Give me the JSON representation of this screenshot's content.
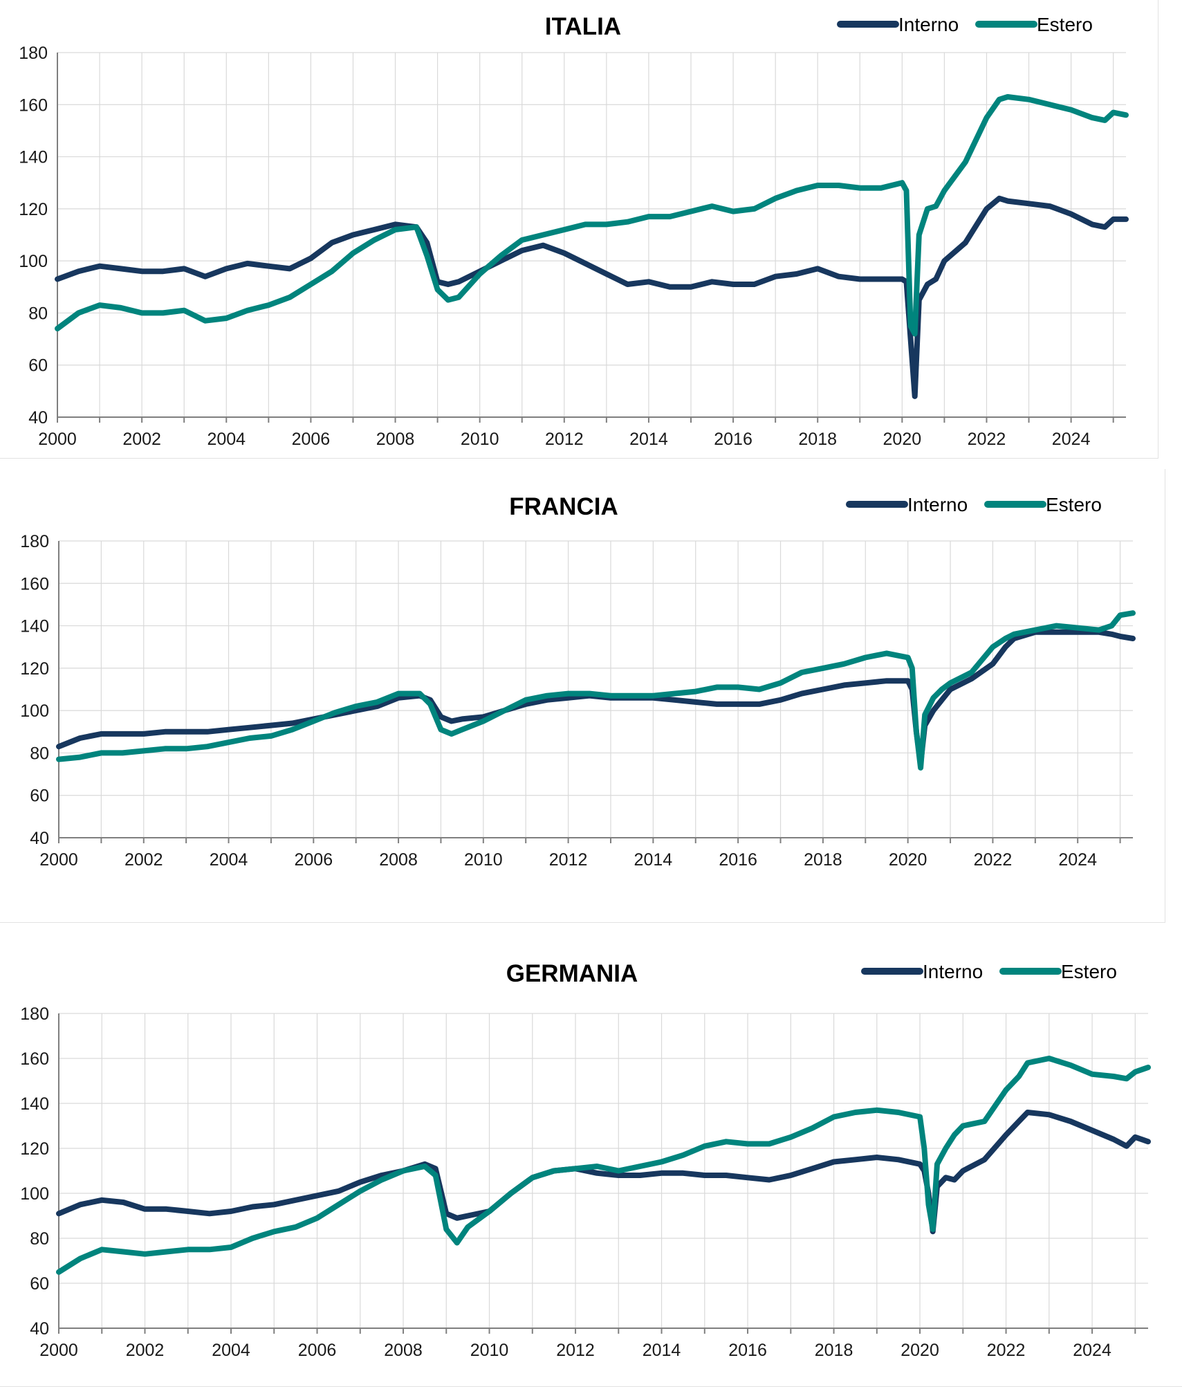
{
  "colors": {
    "interno": "#17375e",
    "estero": "#00847d",
    "grid": "#d9d9d9",
    "axis": "#7f7f7f"
  },
  "chart_data": [
    {
      "type": "line",
      "title": "ITALIA",
      "xlabel": "",
      "ylabel": "",
      "ylim": [
        40,
        180
      ],
      "xlim": [
        2000,
        2025.3
      ],
      "grid": true,
      "legend_position": "top-right",
      "x_ticks": [
        "2000",
        "2002",
        "2004",
        "2006",
        "2008",
        "2010",
        "2012",
        "2014",
        "2016",
        "2018",
        "2020",
        "2022",
        "2024"
      ],
      "y_ticks": [
        "180",
        "160",
        "140",
        "120",
        "100",
        "80",
        "60",
        "40"
      ],
      "series": [
        {
          "name": "Interno",
          "x": [
            2000,
            2000.5,
            2001,
            2001.5,
            2002,
            2002.5,
            2003,
            2003.5,
            2004,
            2004.5,
            2005,
            2005.5,
            2006,
            2006.5,
            2007,
            2007.5,
            2008,
            2008.5,
            2008.75,
            2009,
            2009.25,
            2009.5,
            2010,
            2010.5,
            2011,
            2011.5,
            2012,
            2012.5,
            2013,
            2013.5,
            2014,
            2014.5,
            2015,
            2015.5,
            2016,
            2016.5,
            2017,
            2017.5,
            2018,
            2018.5,
            2019,
            2019.5,
            2020,
            2020.1,
            2020.2,
            2020.3,
            2020.4,
            2020.6,
            2020.8,
            2021,
            2021.5,
            2022,
            2022.3,
            2022.5,
            2023,
            2023.5,
            2024,
            2024.5,
            2024.8,
            2025,
            2025.3
          ],
          "y": [
            93,
            96,
            98,
            97,
            96,
            96,
            97,
            94,
            97,
            99,
            98,
            97,
            101,
            107,
            110,
            112,
            114,
            113,
            107,
            92,
            91,
            92,
            96,
            100,
            104,
            106,
            103,
            99,
            95,
            91,
            92,
            90,
            90,
            92,
            91,
            91,
            94,
            95,
            97,
            94,
            93,
            93,
            93,
            92,
            70,
            48,
            85,
            91,
            93,
            100,
            107,
            120,
            124,
            123,
            122,
            121,
            118,
            114,
            113,
            116,
            116
          ]
        },
        {
          "name": "Estero",
          "x": [
            2000,
            2000.5,
            2001,
            2001.5,
            2002,
            2002.5,
            2003,
            2003.5,
            2004,
            2004.5,
            2005,
            2005.5,
            2006,
            2006.5,
            2007,
            2007.5,
            2008,
            2008.5,
            2008.75,
            2009,
            2009.25,
            2009.5,
            2010,
            2010.5,
            2011,
            2011.5,
            2012,
            2012.5,
            2013,
            2013.5,
            2014,
            2014.5,
            2015,
            2015.5,
            2016,
            2016.5,
            2017,
            2017.5,
            2018,
            2018.5,
            2019,
            2019.5,
            2020,
            2020.1,
            2020.2,
            2020.3,
            2020.4,
            2020.6,
            2020.8,
            2021,
            2021.5,
            2022,
            2022.3,
            2022.5,
            2023,
            2023.5,
            2024,
            2024.5,
            2024.8,
            2025,
            2025.3
          ],
          "y": [
            74,
            80,
            83,
            82,
            80,
            80,
            81,
            77,
            78,
            81,
            83,
            86,
            91,
            96,
            103,
            108,
            112,
            113,
            102,
            89,
            85,
            86,
            95,
            102,
            108,
            110,
            112,
            114,
            114,
            115,
            117,
            117,
            119,
            121,
            119,
            120,
            124,
            127,
            129,
            129,
            128,
            128,
            130,
            127,
            75,
            72,
            110,
            120,
            121,
            127,
            138,
            155,
            162,
            163,
            162,
            160,
            158,
            155,
            154,
            157,
            156
          ]
        }
      ]
    },
    {
      "type": "line",
      "title": "FRANCIA",
      "xlabel": "",
      "ylabel": "",
      "ylim": [
        40,
        180
      ],
      "xlim": [
        2000,
        2025.3
      ],
      "grid": true,
      "legend_position": "top-right",
      "x_ticks": [
        "2000",
        "2002",
        "2004",
        "2006",
        "2008",
        "2010",
        "2012",
        "2014",
        "2016",
        "2018",
        "2020",
        "2022",
        "2024"
      ],
      "y_ticks": [
        "180",
        "160",
        "140",
        "120",
        "100",
        "80",
        "60",
        "40"
      ],
      "series": [
        {
          "name": "Interno",
          "x": [
            2000,
            2000.5,
            2001,
            2001.5,
            2002,
            2002.5,
            2003,
            2003.5,
            2004,
            2004.5,
            2005,
            2005.5,
            2006,
            2006.5,
            2007,
            2007.5,
            2008,
            2008.5,
            2008.75,
            2009,
            2009.25,
            2009.5,
            2010,
            2010.5,
            2011,
            2011.5,
            2012,
            2012.5,
            2013,
            2013.5,
            2014,
            2014.5,
            2015,
            2015.5,
            2016,
            2016.5,
            2017,
            2017.5,
            2018,
            2018.5,
            2019,
            2019.5,
            2020,
            2020.1,
            2020.2,
            2020.3,
            2020.4,
            2020.6,
            2020.8,
            2021,
            2021.5,
            2022,
            2022.3,
            2022.5,
            2023,
            2023.5,
            2024,
            2024.5,
            2024.8,
            2025,
            2025.3
          ],
          "y": [
            83,
            87,
            89,
            89,
            89,
            90,
            90,
            90,
            91,
            92,
            93,
            94,
            96,
            98,
            100,
            102,
            106,
            107,
            105,
            97,
            95,
            96,
            97,
            100,
            103,
            105,
            106,
            107,
            106,
            106,
            106,
            105,
            104,
            103,
            103,
            103,
            105,
            108,
            110,
            112,
            113,
            114,
            114,
            110,
            90,
            75,
            93,
            100,
            105,
            110,
            115,
            122,
            130,
            134,
            137,
            137,
            137,
            137,
            136,
            135,
            134
          ]
        },
        {
          "name": "Estero",
          "x": [
            2000,
            2000.5,
            2001,
            2001.5,
            2002,
            2002.5,
            2003,
            2003.5,
            2004,
            2004.5,
            2005,
            2005.5,
            2006,
            2006.5,
            2007,
            2007.5,
            2008,
            2008.5,
            2008.75,
            2009,
            2009.25,
            2009.5,
            2010,
            2010.5,
            2011,
            2011.5,
            2012,
            2012.5,
            2013,
            2013.5,
            2014,
            2014.5,
            2015,
            2015.5,
            2016,
            2016.5,
            2017,
            2017.5,
            2018,
            2018.5,
            2019,
            2019.5,
            2020,
            2020.1,
            2020.2,
            2020.3,
            2020.4,
            2020.6,
            2020.8,
            2021,
            2021.5,
            2022,
            2022.3,
            2022.5,
            2023,
            2023.5,
            2024,
            2024.5,
            2024.8,
            2025,
            2025.3
          ],
          "y": [
            77,
            78,
            80,
            80,
            81,
            82,
            82,
            83,
            85,
            87,
            88,
            91,
            95,
            99,
            102,
            104,
            108,
            108,
            103,
            91,
            89,
            91,
            95,
            100,
            105,
            107,
            108,
            108,
            107,
            107,
            107,
            108,
            109,
            111,
            111,
            110,
            113,
            118,
            120,
            122,
            125,
            127,
            125,
            120,
            90,
            73,
            98,
            106,
            110,
            113,
            118,
            130,
            134,
            136,
            138,
            140,
            139,
            138,
            140,
            145,
            146
          ]
        }
      ]
    },
    {
      "type": "line",
      "title": "GERMANIA",
      "xlabel": "",
      "ylabel": "",
      "ylim": [
        40,
        180
      ],
      "xlim": [
        2000,
        2025.3
      ],
      "grid": true,
      "legend_position": "top-right",
      "x_ticks": [
        "2000",
        "2002",
        "2004",
        "2006",
        "2008",
        "2010",
        "2012",
        "2014",
        "2016",
        "2018",
        "2020",
        "2022",
        "2024"
      ],
      "y_ticks": [
        "180",
        "160",
        "140",
        "120",
        "100",
        "80",
        "60",
        "40"
      ],
      "series": [
        {
          "name": "Interno",
          "x": [
            2000,
            2000.5,
            2001,
            2001.5,
            2002,
            2002.5,
            2003,
            2003.5,
            2004,
            2004.5,
            2005,
            2005.5,
            2006,
            2006.5,
            2007,
            2007.5,
            2008,
            2008.5,
            2008.75,
            2009,
            2009.25,
            2009.5,
            2010,
            2010.5,
            2011,
            2011.5,
            2012,
            2012.5,
            2013,
            2013.5,
            2014,
            2014.5,
            2015,
            2015.5,
            2016,
            2016.5,
            2017,
            2017.5,
            2018,
            2018.5,
            2019,
            2019.5,
            2020,
            2020.1,
            2020.2,
            2020.3,
            2020.4,
            2020.6,
            2020.8,
            2021,
            2021.5,
            2022,
            2022.3,
            2022.5,
            2023,
            2023.5,
            2024,
            2024.5,
            2024.8,
            2025,
            2025.3
          ],
          "y": [
            91,
            95,
            97,
            96,
            93,
            93,
            92,
            91,
            92,
            94,
            95,
            97,
            99,
            101,
            105,
            108,
            110,
            113,
            111,
            91,
            89,
            90,
            92,
            100,
            107,
            110,
            111,
            109,
            108,
            108,
            109,
            109,
            108,
            108,
            107,
            106,
            108,
            111,
            114,
            115,
            116,
            115,
            113,
            110,
            100,
            83,
            103,
            107,
            106,
            110,
            115,
            126,
            132,
            136,
            135,
            132,
            128,
            124,
            121,
            125,
            123
          ]
        },
        {
          "name": "Estero",
          "x": [
            2000,
            2000.5,
            2001,
            2001.5,
            2002,
            2002.5,
            2003,
            2003.5,
            2004,
            2004.5,
            2005,
            2005.5,
            2006,
            2006.5,
            2007,
            2007.5,
            2008,
            2008.5,
            2008.75,
            2009,
            2009.25,
            2009.5,
            2010,
            2010.5,
            2011,
            2011.5,
            2012,
            2012.5,
            2013,
            2013.5,
            2014,
            2014.5,
            2015,
            2015.5,
            2016,
            2016.5,
            2017,
            2017.5,
            2018,
            2018.5,
            2019,
            2019.5,
            2020,
            2020.1,
            2020.2,
            2020.3,
            2020.4,
            2020.6,
            2020.8,
            2021,
            2021.5,
            2022,
            2022.3,
            2022.5,
            2023,
            2023.5,
            2024,
            2024.5,
            2024.8,
            2025,
            2025.3
          ],
          "y": [
            65,
            71,
            75,
            74,
            73,
            74,
            75,
            75,
            76,
            80,
            83,
            85,
            89,
            95,
            101,
            106,
            110,
            112,
            108,
            84,
            78,
            85,
            92,
            100,
            107,
            110,
            111,
            112,
            110,
            112,
            114,
            117,
            121,
            123,
            122,
            122,
            125,
            129,
            134,
            136,
            137,
            136,
            134,
            120,
            95,
            84,
            113,
            120,
            126,
            130,
            132,
            146,
            152,
            158,
            160,
            157,
            153,
            152,
            151,
            154,
            156
          ]
        }
      ]
    }
  ]
}
